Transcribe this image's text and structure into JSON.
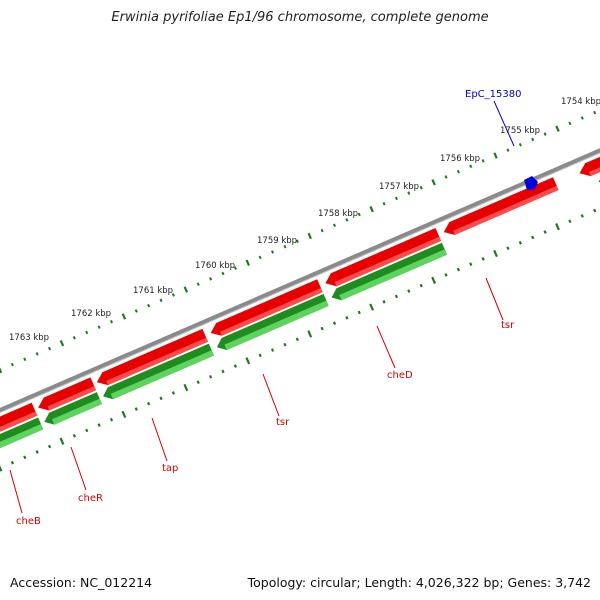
{
  "title": "Erwinia pyrifoliae Ep1/96 chromosome, complete genome",
  "footer": {
    "accession": "Accession: NC_012214",
    "summary": "Topology: circular; Length: 4,026,322 bp; Genes: 3,742"
  },
  "scale_labels": [
    "1754 kbp",
    "1755 kbp",
    "1756 kbp",
    "1757 kbp",
    "1758 kbp",
    "1759 kbp",
    "1760 kbp",
    "1761 kbp",
    "1762 kbp",
    "1763 kbp"
  ],
  "gene_labels": [
    "cheB",
    "cheR",
    "tap",
    "tsr",
    "cheD",
    "tsr"
  ],
  "feature_label": "EpC_15380",
  "colors": {
    "backbone": "#8a8a8a",
    "gene": "#e60000",
    "cds": "#1e8c1e",
    "tick": "#1e7a1e",
    "feature": "#0000dd",
    "gene_label": "#d40000",
    "feature_label": "#0000cc"
  }
}
